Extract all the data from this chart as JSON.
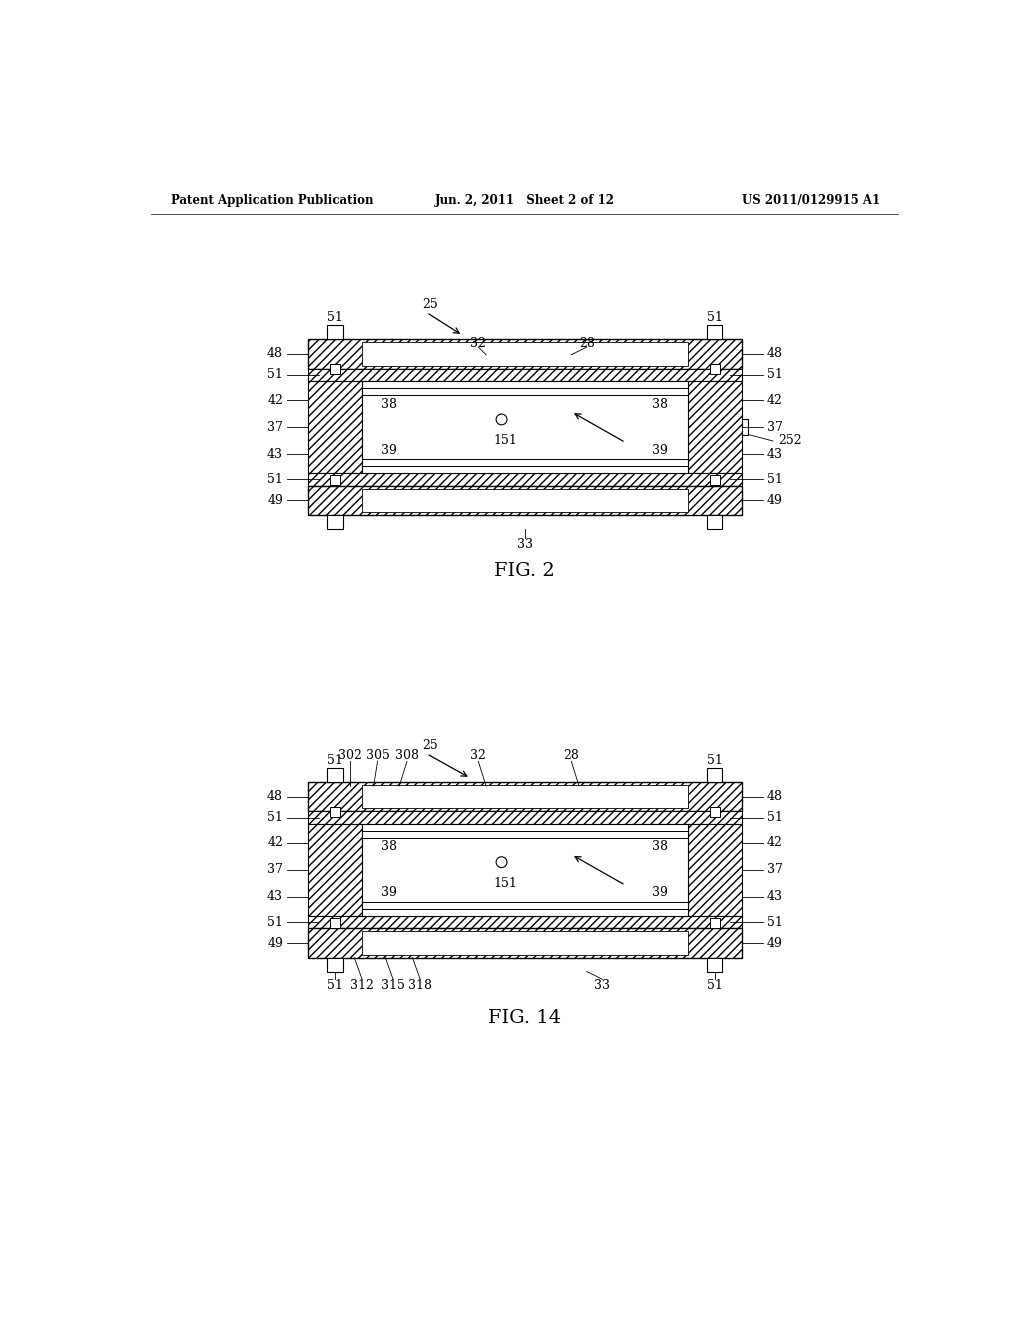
{
  "background_color": "#ffffff",
  "header_left": "Patent Application Publication",
  "header_mid": "Jun. 2, 2011   Sheet 2 of 12",
  "header_right": "US 2011/0129915 A1"
}
